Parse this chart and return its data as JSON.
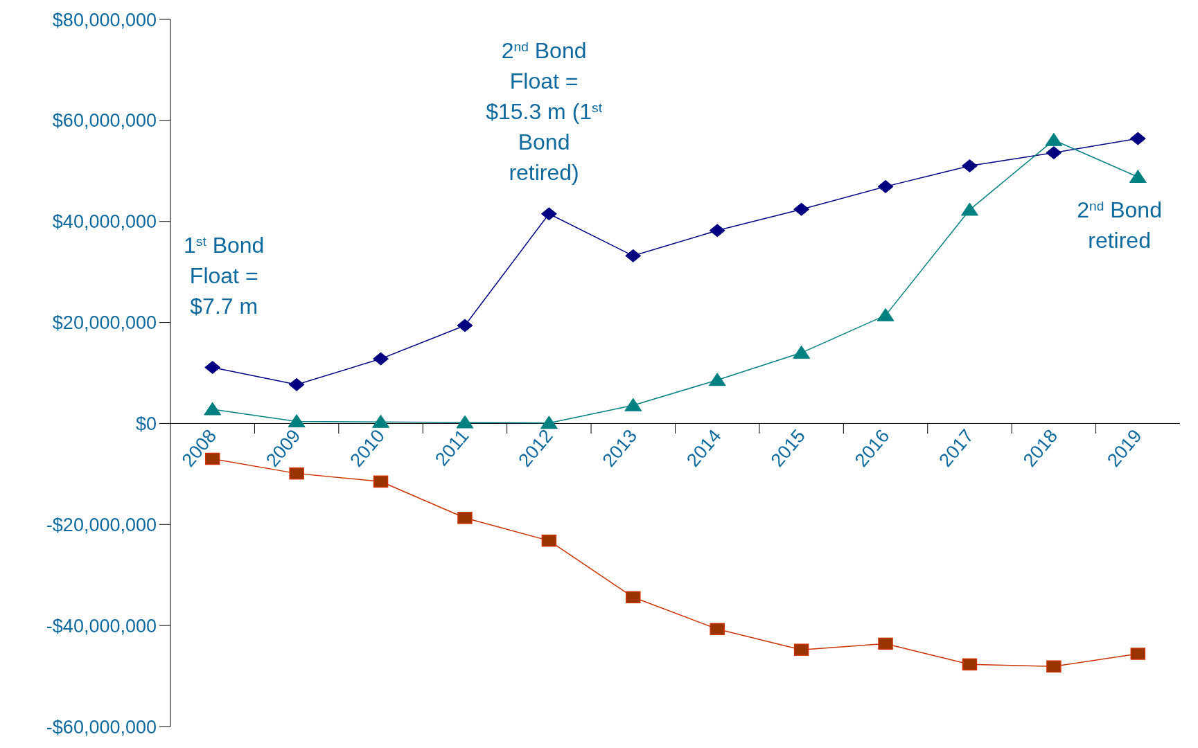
{
  "chart_data": {
    "type": "line",
    "categories": [
      "2008",
      "2009",
      "2010",
      "2011",
      "2012",
      "2013",
      "2014",
      "2015",
      "2016",
      "2017",
      "2018",
      "2019"
    ],
    "series": [
      {
        "color": "#000080",
        "marker": "diamond",
        "values": [
          11100000,
          7700000,
          12800000,
          19400000,
          41500000,
          33200000,
          38200000,
          42400000,
          46900000,
          51000000,
          53600000,
          56400000
        ]
      },
      {
        "color": "#008080",
        "marker": "triangle",
        "values": [
          2800000,
          400000,
          300000,
          200000,
          100000,
          3600000,
          8600000,
          14000000,
          21400000,
          42300000,
          56100000,
          48800000
        ]
      },
      {
        "color": "#cc3300",
        "marker": "square",
        "values": [
          -7000000,
          -9900000,
          -11500000,
          -18700000,
          -23200000,
          -34400000,
          -40700000,
          -44800000,
          -43600000,
          -47700000,
          -48100000,
          -45600000
        ]
      }
    ],
    "ylim": [
      -60000000,
      80000000
    ],
    "yticks": [
      {
        "value": -60000000,
        "label": "-$60,000,000"
      },
      {
        "value": -40000000,
        "label": "-$40,000,000"
      },
      {
        "value": -20000000,
        "label": "-$20,000,000"
      },
      {
        "value": 0,
        "label": "$0"
      },
      {
        "value": 20000000,
        "label": "$20,000,000"
      },
      {
        "value": 40000000,
        "label": "$40,000,000"
      },
      {
        "value": 60000000,
        "label": "$60,000,000"
      },
      {
        "value": 80000000,
        "label": "$80,000,000"
      }
    ],
    "annotations": [
      "1$^{st}$ Bond Float = $7.7 m",
      "2$^{nd}$ Bond Float = $15.3 m (1$^{st}$ Bond retired)",
      "2$^{nd}$ Bond retired"
    ],
    "grid": false,
    "legend": false
  }
}
